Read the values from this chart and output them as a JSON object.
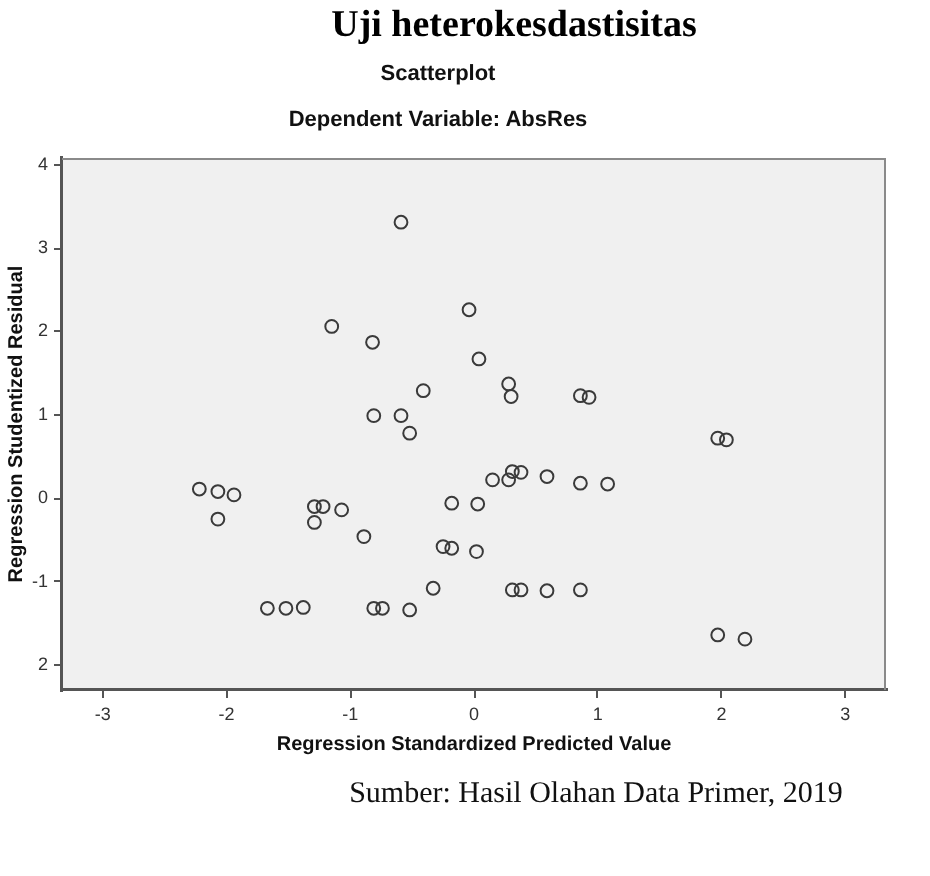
{
  "chart_data": {
    "type": "scatter",
    "title": "Scatterplot",
    "subtitle": "Dependent Variable: AbsRes",
    "xlabel": "Regression Standardized Predicted Value",
    "ylabel": "Regression Studentized Residual",
    "annotations": [
      "Uji heterokesdastisitas",
      "Sumber: Hasil Olahan Data Primer, 2019"
    ],
    "x": [
      -0.59,
      -1.15,
      -0.82,
      -0.04,
      0.04,
      -0.41,
      -0.81,
      -0.59,
      -0.52,
      -2.22,
      -2.07,
      -1.94,
      -2.07,
      -1.29,
      -1.22,
      -1.07,
      -1.29,
      -0.89,
      -0.18,
      0.03,
      -0.25,
      -0.18,
      0.02,
      -0.33,
      -1.67,
      -1.52,
      -1.38,
      -0.81,
      -0.74,
      -0.52,
      0.28,
      0.3,
      0.86,
      0.93,
      1.97,
      2.04,
      0.15,
      0.28,
      0.31,
      0.38,
      0.59,
      0.86,
      1.08,
      0.31,
      0.38,
      0.59,
      0.86,
      1.97,
      2.19
    ],
    "values": [
      3.31,
      2.06,
      1.87,
      2.26,
      1.67,
      1.29,
      0.99,
      0.99,
      0.78,
      0.11,
      0.08,
      0.04,
      -0.25,
      -0.1,
      -0.1,
      -0.14,
      -0.29,
      -0.46,
      -0.06,
      -0.07,
      -0.58,
      -0.6,
      -0.64,
      -1.08,
      -1.32,
      -1.32,
      -1.31,
      -1.32,
      -1.32,
      -1.34,
      1.37,
      1.22,
      1.23,
      1.21,
      0.72,
      0.7,
      0.22,
      0.22,
      0.32,
      0.31,
      0.26,
      0.18,
      0.17,
      -1.1,
      -1.1,
      -1.11,
      -1.1,
      -1.64,
      -1.69
    ],
    "color": "#3a3a3a",
    "marker": "circle",
    "xlim": [
      -3.33,
      3.33
    ],
    "xticks": [
      -3,
      -2,
      -1,
      0,
      1,
      2,
      3
    ],
    "ylim": [
      -2.3,
      4.08
    ],
    "yticks": [
      {
        "value": -2,
        "label": "2"
      },
      -1,
      0,
      1,
      2,
      3,
      4
    ]
  }
}
